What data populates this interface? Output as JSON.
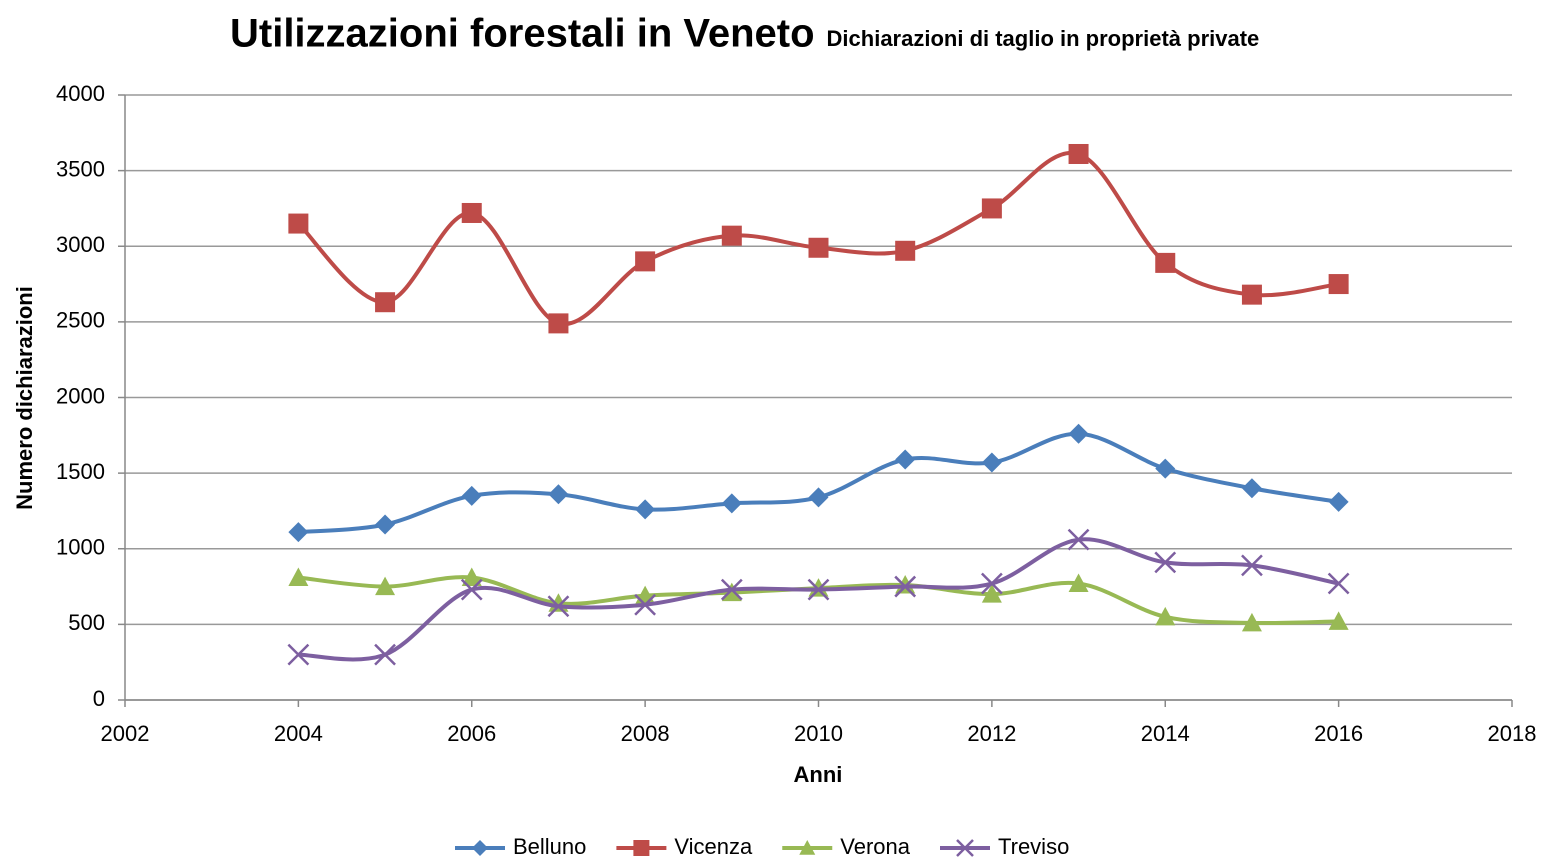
{
  "chart_data": {
    "type": "line",
    "title": "Utilizzazioni forestali in Veneto",
    "subtitle": "Dichiarazioni di taglio in proprietà private",
    "x_label": "Anni",
    "y_label": "Numero dichiarazioni",
    "x": [
      2004,
      2005,
      2006,
      2007,
      2008,
      2009,
      2010,
      2011,
      2012,
      2013,
      2014,
      2015,
      2016
    ],
    "xlim": [
      2002,
      2018
    ],
    "xticks": [
      2002,
      2004,
      2006,
      2008,
      2010,
      2012,
      2014,
      2016,
      2018
    ],
    "ylim": [
      0,
      4000
    ],
    "yticks": [
      0,
      500,
      1000,
      1500,
      2000,
      2500,
      3000,
      3500,
      4000
    ],
    "grid": true,
    "smooth": true,
    "legend": "bottom",
    "series": [
      {
        "name": "Belluno",
        "color": "#4a7ebb",
        "marker": "diamond",
        "values": [
          1110,
          1160,
          1350,
          1360,
          1260,
          1300,
          1340,
          1590,
          1570,
          1760,
          1530,
          1400,
          1310
        ]
      },
      {
        "name": "Vicenza",
        "color": "#be4b48",
        "marker": "square",
        "values": [
          3150,
          2630,
          3220,
          2490,
          2900,
          3070,
          2990,
          2970,
          3250,
          3610,
          2890,
          2680,
          2750
        ]
      },
      {
        "name": "Verona",
        "color": "#98b954",
        "marker": "triangle",
        "values": [
          810,
          750,
          810,
          640,
          690,
          710,
          740,
          760,
          700,
          770,
          550,
          510,
          520
        ]
      },
      {
        "name": "Treviso",
        "color": "#7d5fa0",
        "marker": "x",
        "values": [
          300,
          300,
          730,
          620,
          630,
          730,
          730,
          750,
          770,
          1060,
          910,
          890,
          770
        ]
      }
    ]
  }
}
